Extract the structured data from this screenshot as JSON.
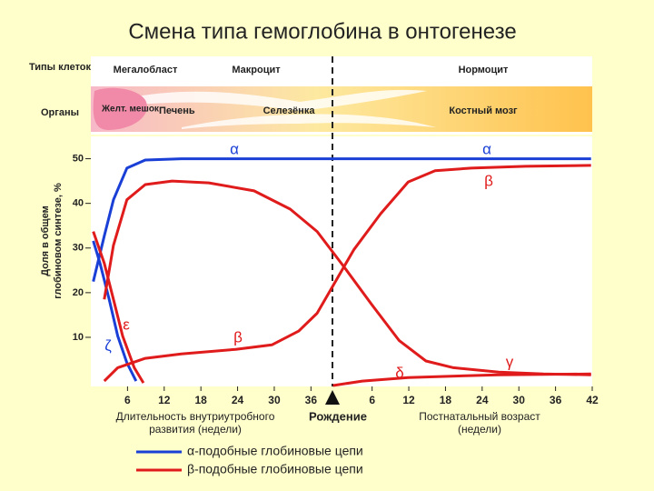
{
  "chart_data": {
    "type": "line",
    "title": "Смена типа гемоглобина в онтогенезе",
    "row_labels": [
      "Типы клеток",
      "Органы"
    ],
    "cell_types": [
      "Мегалобласт",
      "Макроцит",
      "Нормоцит"
    ],
    "organs": [
      "Желт. мешок",
      "Печень",
      "Селезёнка",
      "Костный мозг"
    ],
    "y_label": [
      "Доля в общем",
      "глобиновом синтезе, %"
    ],
    "x_label_prenatal": [
      "Длительность внутриутробного",
      "развития (недели)"
    ],
    "birth_label": "Рождение",
    "x_label_postnatal": [
      "Постнатальный возраст",
      "(недели)"
    ],
    "xlim": [
      0,
      82
    ],
    "ylim": [
      -1,
      55
    ],
    "yticks": [
      10,
      20,
      30,
      40,
      50
    ],
    "xticks": [
      6,
      12,
      18,
      24,
      30,
      36,
      {
        "value": 46,
        "label": "6"
      },
      {
        "value": 52,
        "label": "12"
      },
      {
        "value": 58,
        "label": "18"
      },
      {
        "value": 64,
        "label": "24"
      },
      {
        "value": 70,
        "label": "30"
      },
      {
        "value": 76,
        "label": "36"
      },
      {
        "value": 82,
        "label": "42"
      }
    ],
    "birth_x": 39.6,
    "legend": [
      {
        "name": "α-подобные глобиновые цепи",
        "color": "#1a3fd6"
      },
      {
        "name": "β-подобные глобиновые цепи",
        "color": "#e01b1b"
      }
    ],
    "series": [
      {
        "name": "α",
        "color": "#1a3fd6",
        "x": [
          0.4,
          2.2,
          3.7,
          5.9,
          8.9,
          14.8,
          81.8
        ],
        "values": [
          22.5,
          32.7,
          40.8,
          47.9,
          49.7,
          50,
          50
        ]
      },
      {
        "name": "ζ",
        "color": "#1a3fd6",
        "x": [
          0.4,
          1.5,
          3,
          4.4,
          5.9,
          7.4
        ],
        "values": [
          31.6,
          26.6,
          18.5,
          10.3,
          4.3,
          0.2
        ]
      },
      {
        "name": "ε",
        "color": "#e01b1b",
        "x": [
          0.4,
          2.2,
          3.7,
          5.2,
          7.1,
          8.6
        ],
        "values": [
          33.7,
          26.6,
          18.5,
          10.3,
          3.2,
          -0.2
        ]
      },
      {
        "name": "γ",
        "color": "#e01b1b",
        "x": [
          2.2,
          3.7,
          5.9,
          8.9,
          13.3,
          19.3,
          26.7,
          32.6,
          37,
          41.5,
          45.9,
          50.4,
          54.8,
          59.3,
          66.7,
          74,
          81.8
        ],
        "values": [
          18.5,
          30.6,
          40.8,
          44.2,
          45,
          44.6,
          42.8,
          38.7,
          33.7,
          25.6,
          17.4,
          9.3,
          4.7,
          3.2,
          2.2,
          1.8,
          1.6
        ]
      },
      {
        "name": "β",
        "color": "#e01b1b",
        "x": [
          2.2,
          4.4,
          8.9,
          14.8,
          23.7,
          29.6,
          34,
          37,
          40,
          43,
          47.4,
          51.9,
          56.3,
          62.2,
          71.1,
          81.8
        ],
        "values": [
          0.2,
          3.2,
          5.3,
          6.3,
          7.3,
          8.3,
          11.4,
          15.4,
          22.5,
          29.6,
          37.7,
          44.8,
          47.3,
          47.9,
          48.3,
          48.5
        ]
      },
      {
        "name": "δ",
        "color": "#e01b1b",
        "x": [
          39.6,
          44.4,
          51.9,
          66.7,
          81.8
        ],
        "values": [
          -0.8,
          0.2,
          1,
          1.6,
          1.8
        ]
      }
    ]
  }
}
